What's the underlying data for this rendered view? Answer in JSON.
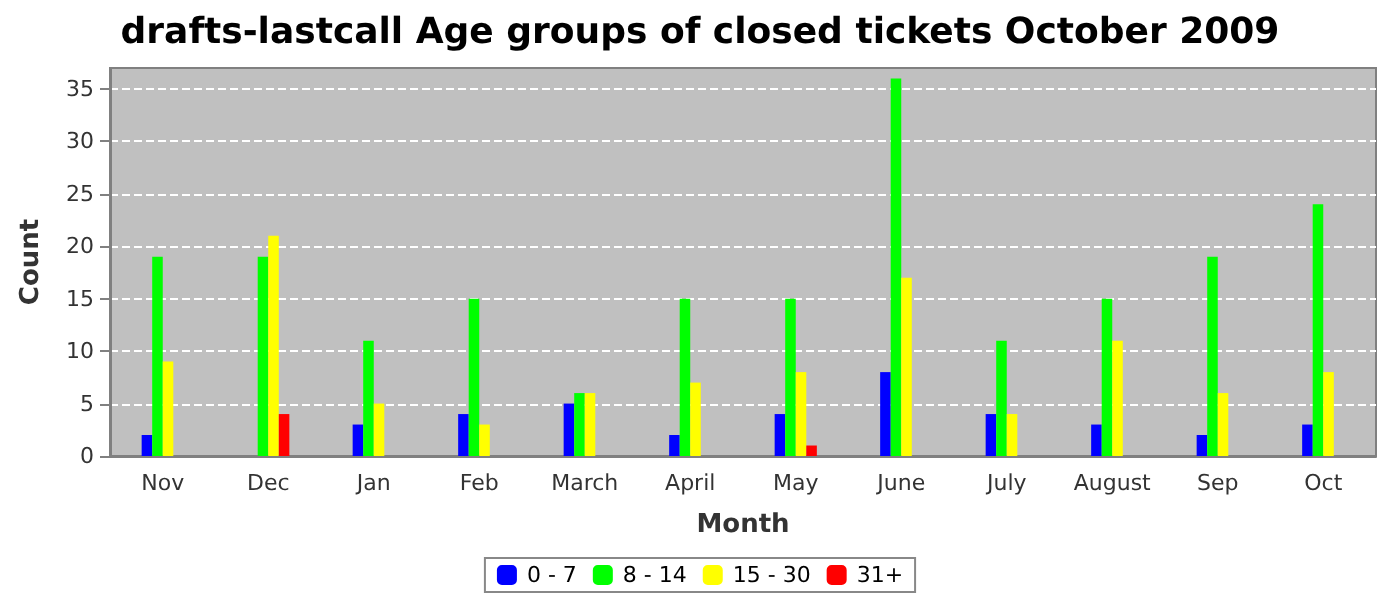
{
  "chart_data": {
    "type": "bar",
    "title": "drafts-lastcall Age groups of closed tickets October 2009",
    "xlabel": "Month",
    "ylabel": "Count",
    "categories": [
      "Nov",
      "Dec",
      "Jan",
      "Feb",
      "March",
      "April",
      "May",
      "June",
      "July",
      "August",
      "Sep",
      "Oct"
    ],
    "series": [
      {
        "name": "0 - 7",
        "color": "#0000ff",
        "values": [
          2,
          0,
          3,
          4,
          5,
          2,
          4,
          8,
          4,
          3,
          2,
          3
        ]
      },
      {
        "name": "8 - 14",
        "color": "#00ff00",
        "values": [
          19,
          19,
          11,
          15,
          6,
          15,
          15,
          36,
          11,
          15,
          19,
          24
        ]
      },
      {
        "name": "15 - 30",
        "color": "#ffff00",
        "values": [
          9,
          21,
          5,
          3,
          6,
          7,
          8,
          17,
          4,
          11,
          6,
          8
        ]
      },
      {
        "name": "31+",
        "color": "#ff0000",
        "values": [
          0,
          4,
          0,
          0,
          0,
          0,
          1,
          0,
          0,
          0,
          0,
          0
        ]
      }
    ],
    "ylim": [
      0,
      37
    ],
    "yticks": [
      0,
      5,
      10,
      15,
      20,
      25,
      30,
      35
    ],
    "grid": "y",
    "legend": "bottom"
  }
}
